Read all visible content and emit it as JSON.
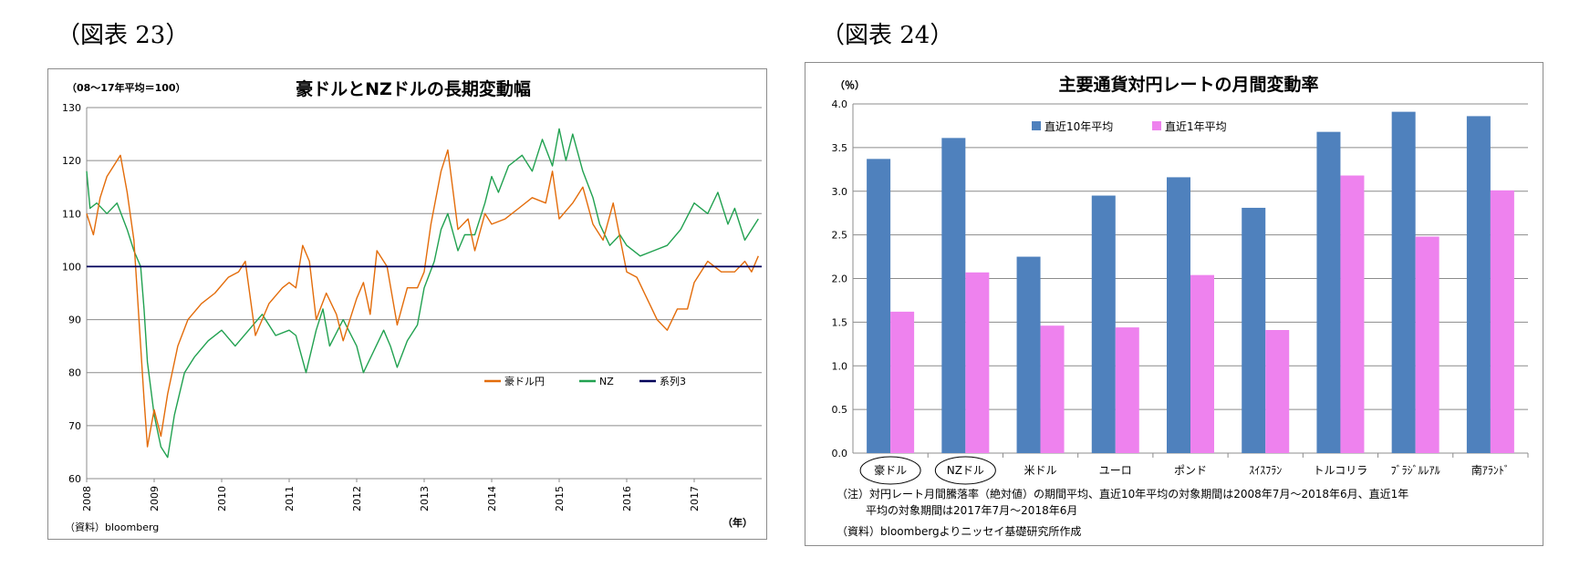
{
  "figures": [
    {
      "label": "（図表 23）"
    },
    {
      "label": "（図表 24）"
    }
  ],
  "chart_data": [
    {
      "type": "line",
      "title": "豪ドルとNZドルの長期変動幅",
      "unit_label": "（08～17年平均＝100）",
      "xlabel": "（年）",
      "source": "（資料）bloomberg",
      "ylim": [
        60,
        130
      ],
      "yticks": [
        60,
        70,
        80,
        90,
        100,
        110,
        120,
        130
      ],
      "xlim": [
        2008,
        2018
      ],
      "xticks": [
        "2008",
        "2009",
        "2010",
        "2011",
        "2012",
        "2013",
        "2014",
        "2015",
        "2016",
        "2017"
      ],
      "grid": true,
      "legend_position": "right-center",
      "series": [
        {
          "name": "豪ドル円",
          "color": "#e36c0a",
          "x": [
            2008.0,
            2008.1,
            2008.2,
            2008.3,
            2008.4,
            2008.5,
            2008.6,
            2008.7,
            2008.75,
            2008.8,
            2008.85,
            2008.9,
            2009.0,
            2009.1,
            2009.2,
            2009.35,
            2009.5,
            2009.7,
            2009.9,
            2010.1,
            2010.25,
            2010.35,
            2010.5,
            2010.7,
            2010.9,
            2011.0,
            2011.1,
            2011.2,
            2011.3,
            2011.4,
            2011.55,
            2011.7,
            2011.8,
            2012.0,
            2012.1,
            2012.2,
            2012.3,
            2012.45,
            2012.6,
            2012.75,
            2012.9,
            2013.0,
            2013.1,
            2013.25,
            2013.35,
            2013.5,
            2013.65,
            2013.75,
            2013.9,
            2014.0,
            2014.2,
            2014.4,
            2014.6,
            2014.8,
            2014.9,
            2015.0,
            2015.2,
            2015.35,
            2015.5,
            2015.65,
            2015.8,
            2016.0,
            2016.15,
            2016.3,
            2016.45,
            2016.6,
            2016.75,
            2016.9,
            2017.0,
            2017.2,
            2017.4,
            2017.6,
            2017.75,
            2017.85,
            2017.95
          ],
          "values": [
            110,
            106,
            113,
            117,
            119,
            121,
            114,
            105,
            95,
            85,
            75,
            66,
            73,
            68,
            76,
            85,
            90,
            93,
            95,
            98,
            99,
            101,
            87,
            93,
            96,
            97,
            96,
            104,
            101,
            90,
            95,
            91,
            86,
            94,
            97,
            91,
            103,
            100,
            89,
            96,
            96,
            99,
            108,
            118,
            122,
            107,
            109,
            103,
            110,
            108,
            109,
            111,
            113,
            112,
            118,
            109,
            112,
            115,
            108,
            105,
            112,
            99,
            98,
            94,
            90,
            88,
            92,
            92,
            97,
            101,
            99,
            99,
            101,
            99,
            102
          ]
        },
        {
          "name": "NZ",
          "color": "#21a150",
          "x": [
            2008.0,
            2008.05,
            2008.15,
            2008.3,
            2008.45,
            2008.6,
            2008.7,
            2008.8,
            2008.85,
            2008.9,
            2009.0,
            2009.1,
            2009.2,
            2009.3,
            2009.45,
            2009.6,
            2009.8,
            2010.0,
            2010.2,
            2010.4,
            2010.6,
            2010.8,
            2011.0,
            2011.1,
            2011.25,
            2011.4,
            2011.5,
            2011.6,
            2011.8,
            2012.0,
            2012.1,
            2012.25,
            2012.4,
            2012.5,
            2012.6,
            2012.75,
            2012.9,
            2013.0,
            2013.15,
            2013.25,
            2013.35,
            2013.5,
            2013.6,
            2013.75,
            2013.9,
            2014.0,
            2014.1,
            2014.25,
            2014.45,
            2014.6,
            2014.75,
            2014.9,
            2015.0,
            2015.1,
            2015.2,
            2015.35,
            2015.5,
            2015.6,
            2015.75,
            2015.9,
            2016.0,
            2016.2,
            2016.4,
            2016.6,
            2016.8,
            2017.0,
            2017.2,
            2017.35,
            2017.5,
            2017.6,
            2017.75,
            2017.85,
            2017.95
          ],
          "values": [
            118,
            111,
            112,
            110,
            112,
            107,
            103,
            100,
            92,
            82,
            72,
            66,
            64,
            72,
            80,
            83,
            86,
            88,
            85,
            88,
            91,
            87,
            88,
            87,
            80,
            88,
            92,
            85,
            90,
            85,
            80,
            84,
            88,
            85,
            81,
            86,
            89,
            96,
            101,
            107,
            110,
            103,
            106,
            106,
            112,
            117,
            114,
            119,
            121,
            118,
            124,
            119,
            126,
            120,
            125,
            118,
            113,
            108,
            104,
            106,
            104,
            102,
            103,
            104,
            107,
            112,
            110,
            114,
            108,
            111,
            105,
            107,
            109
          ]
        },
        {
          "name": "系列3",
          "color": "#00005a",
          "x": [
            2008.0,
            2018.0
          ],
          "values": [
            100,
            100
          ]
        }
      ]
    },
    {
      "type": "bar",
      "title": "主要通貨対円レートの月間変動率",
      "unit_label": "（％）",
      "ylim": [
        0,
        4
      ],
      "yticks": [
        "0.0",
        "0.5",
        "1.0",
        "1.5",
        "2.0",
        "2.5",
        "3.0",
        "3.5",
        "4.0"
      ],
      "grid": true,
      "legend_position": "top",
      "categories": [
        "豪ドル",
        "NZドル",
        "米ドル",
        "ユーロ",
        "ポンド",
        "ｽｲｽﾌﾗﾝ",
        "トルコリラ",
        "ﾌﾞﾗｼﾞﾙﾚｱﾙ",
        "南ｱﾗﾝﾄﾞ"
      ],
      "circled_categories": [
        "豪ドル",
        "NZドル"
      ],
      "series": [
        {
          "name": "直近10年平均",
          "color": "#4f81bd",
          "values": [
            3.37,
            3.61,
            2.25,
            2.95,
            3.16,
            2.81,
            3.68,
            3.91,
            3.86
          ]
        },
        {
          "name": "直近1年平均",
          "color": "#ee82ee",
          "values": [
            1.62,
            2.07,
            1.46,
            1.44,
            2.04,
            1.41,
            3.18,
            2.48,
            3.01
          ]
        }
      ],
      "notes": [
        "（注）対円レート月間騰落率（絶対値）の期間平均、直近10年平均の対象期間は2008年7月～2018年6月、直近1年",
        "平均の対象期間は2017年7月～2018年6月",
        "（資料）bloombergよりニッセイ基礎研究所作成"
      ]
    }
  ]
}
